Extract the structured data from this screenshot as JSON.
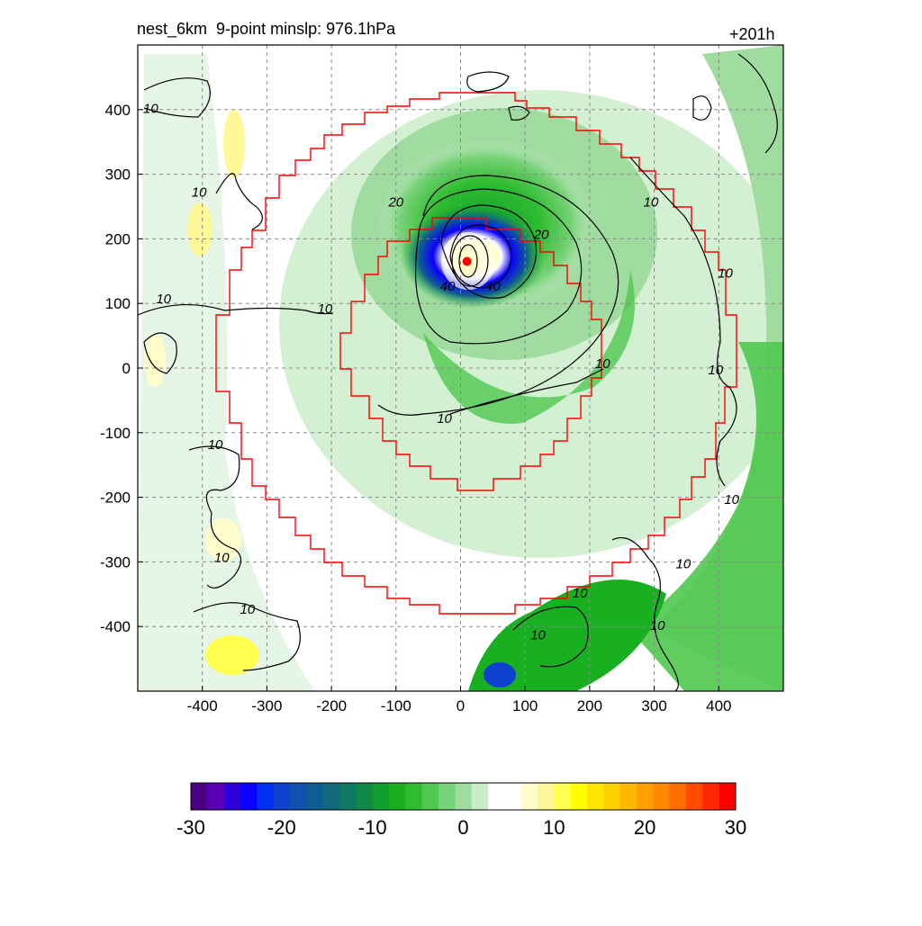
{
  "header": {
    "title": "nest_6km  9-point minslp: 976.1hPa",
    "forecast_hour": "+201h"
  },
  "chart_data": {
    "type": "heatmap",
    "xlim": [
      -500,
      500
    ],
    "ylim": [
      -500,
      500
    ],
    "x_ticks": [
      -400,
      -300,
      -200,
      -100,
      0,
      100,
      200,
      300,
      400
    ],
    "y_ticks": [
      400,
      300,
      200,
      100,
      0,
      -100,
      -200,
      -300,
      -400
    ],
    "x_tick_labels": [
      "-400",
      "-300",
      "-200",
      "-100",
      "0",
      "100",
      "200",
      "300",
      "400"
    ],
    "y_tick_labels": [
      "400",
      "300",
      "200",
      "100",
      "0",
      "-100",
      "-200",
      "-300",
      "-400"
    ],
    "grid": true,
    "contour_labels": [
      {
        "text": "10",
        "x": -480,
        "y": 395
      },
      {
        "text": "10",
        "x": -405,
        "y": 265
      },
      {
        "text": "10",
        "x": -460,
        "y": 100
      },
      {
        "text": "10",
        "x": -210,
        "y": 85
      },
      {
        "text": "20",
        "x": -100,
        "y": 250
      },
      {
        "text": "20",
        "x": 125,
        "y": 200
      },
      {
        "text": "40",
        "x": -20,
        "y": 120
      },
      {
        "text": "40",
        "x": 50,
        "y": 120
      },
      {
        "text": "10",
        "x": 295,
        "y": 250
      },
      {
        "text": "10",
        "x": 410,
        "y": 140
      },
      {
        "text": "10",
        "x": 220,
        "y": 0
      },
      {
        "text": "10",
        "x": 395,
        "y": -10
      },
      {
        "text": "10",
        "x": -25,
        "y": -85
      },
      {
        "text": "10",
        "x": -380,
        "y": -125
      },
      {
        "text": "10",
        "x": 420,
        "y": -210
      },
      {
        "text": "10",
        "x": -370,
        "y": -300
      },
      {
        "text": "10",
        "x": -330,
        "y": -380
      },
      {
        "text": "10",
        "x": 345,
        "y": -310
      },
      {
        "text": "10",
        "x": 185,
        "y": -355
      },
      {
        "text": "10",
        "x": 120,
        "y": -420
      },
      {
        "text": "10",
        "x": 305,
        "y": -405
      }
    ],
    "center_marker": {
      "x": 10,
      "y": 165,
      "color": "#ff0000"
    },
    "colorbar": {
      "ticks": [
        "-30",
        "-20",
        "-10",
        "0",
        "10",
        "20",
        "30"
      ],
      "range": [
        -30,
        30
      ],
      "colors": [
        "#4b0082",
        "#5a00b4",
        "#3000d8",
        "#0a00ff",
        "#0030f0",
        "#1040d0",
        "#1050b0",
        "#105c90",
        "#106878",
        "#107860",
        "#108848",
        "#10a030",
        "#18b020",
        "#30bc30",
        "#50c850",
        "#78d278",
        "#a0dca0",
        "#c8ecc8",
        "#ffffff",
        "#ffffff",
        "#fffccc",
        "#fff898",
        "#ffff50",
        "#ffff00",
        "#ffe600",
        "#ffd000",
        "#ffb800",
        "#ffa000",
        "#ff8800",
        "#ff6c00",
        "#ff4c00",
        "#ff2800",
        "#ff0000"
      ]
    }
  }
}
